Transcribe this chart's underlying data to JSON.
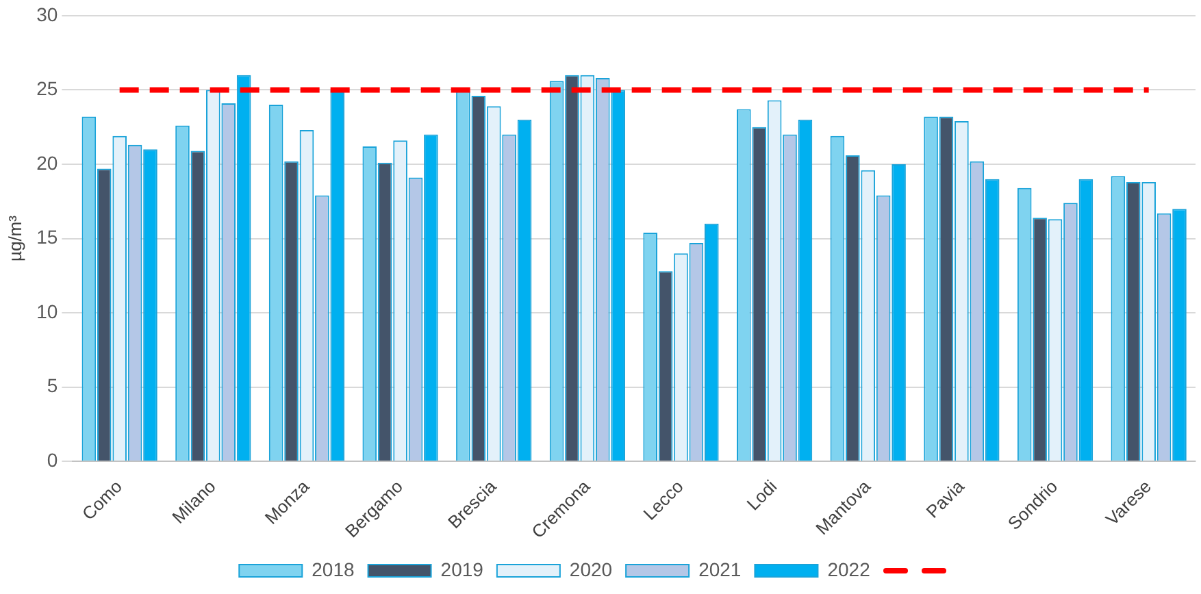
{
  "chart_data": {
    "type": "bar",
    "ylabel": "µg/m³",
    "categories": [
      "Como",
      "Milano",
      "Monza",
      "Bergamo",
      "Brescia",
      "Cremona",
      "Lecco",
      "Lodi",
      "Mantova",
      "Pavia",
      "Sondrio",
      "Varese"
    ],
    "series": [
      {
        "name": "2018",
        "color": "#7fd3f0",
        "values": [
          23.2,
          22.6,
          24.0,
          21.2,
          24.9,
          25.6,
          15.4,
          23.7,
          21.9,
          23.2,
          18.4,
          19.2
        ]
      },
      {
        "name": "2019",
        "color": "#44546a",
        "values": [
          19.7,
          20.9,
          20.2,
          20.1,
          24.6,
          26.0,
          12.8,
          22.5,
          20.6,
          23.2,
          16.4,
          18.8
        ]
      },
      {
        "name": "2020",
        "color": "#e3f1fa",
        "values": [
          21.9,
          25.0,
          22.3,
          21.6,
          23.9,
          26.0,
          14.0,
          24.3,
          19.6,
          22.9,
          16.3,
          18.8
        ]
      },
      {
        "name": "2021",
        "color": "#b4c7e7",
        "values": [
          21.3,
          24.1,
          17.9,
          19.1,
          22.0,
          25.8,
          14.7,
          22.0,
          17.9,
          20.2,
          17.4,
          16.7
        ]
      },
      {
        "name": "2022",
        "color": "#00b0f0",
        "values": [
          21.0,
          26.0,
          25.0,
          22.0,
          23.0,
          25.0,
          16.0,
          23.0,
          20.0,
          19.0,
          19.0,
          17.0
        ]
      }
    ],
    "ref_lines": [
      {
        "axis": "y",
        "value": 25,
        "color": "#ff0000",
        "line_style": "dashed"
      }
    ],
    "ylim": [
      0,
      30
    ],
    "yticks": [
      0,
      5,
      10,
      15,
      20,
      25,
      30
    ],
    "grid": "y",
    "legend": "bottom"
  }
}
